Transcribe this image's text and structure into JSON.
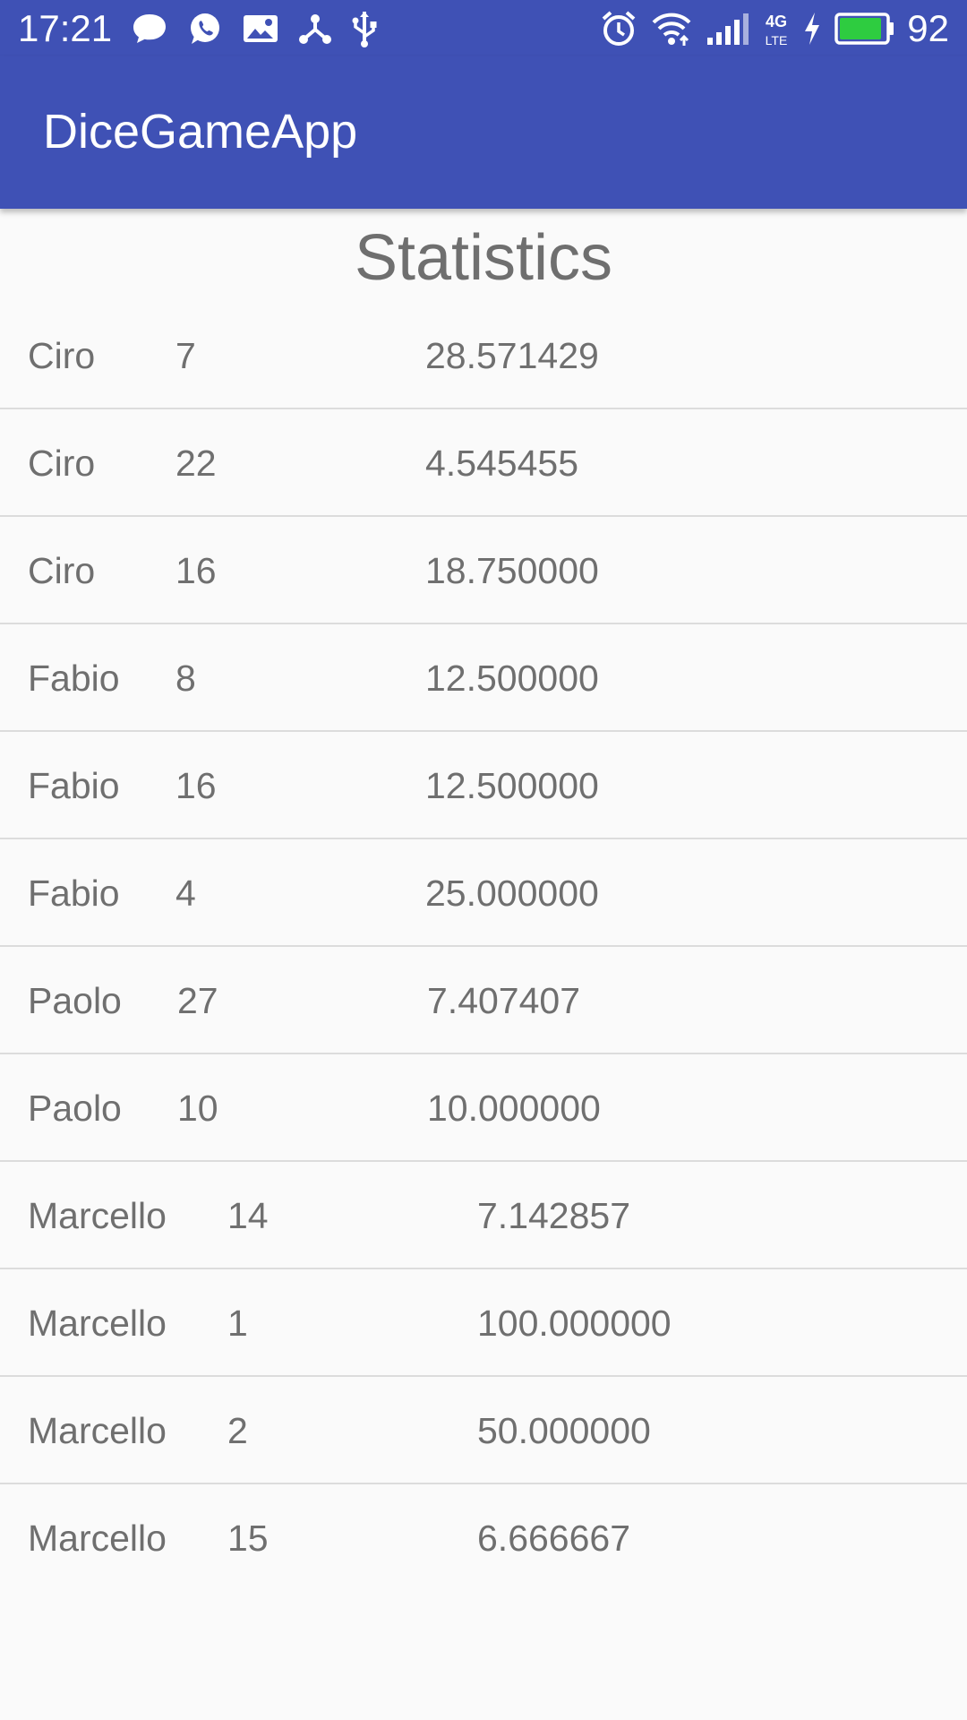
{
  "status_bar": {
    "time": "17:21",
    "left_icons": [
      "chat-bubble-icon",
      "whatsapp-icon",
      "image-message-icon",
      "share-nodes-icon",
      "usb-icon"
    ],
    "right_icons": [
      "alarm-icon",
      "wifi-icon",
      "signal-icon",
      "4g-lte-icon",
      "charging-icon",
      "battery-icon"
    ],
    "network_label": "4G",
    "network_sublabel": "LTE",
    "battery_percent": "92",
    "battery_level": 0.92
  },
  "app_bar": {
    "title": "DiceGameApp"
  },
  "page": {
    "heading": "Statistics"
  },
  "colors": {
    "primary": "#3f51b5",
    "background": "#fafafa",
    "text": "#6f6f6f",
    "divider": "#dcdcdc",
    "battery_fill": "#2ecc40"
  },
  "rows": [
    {
      "name": "Ciro",
      "score": "7",
      "percent": "28.571429"
    },
    {
      "name": "Ciro",
      "score": "22",
      "percent": "4.545455"
    },
    {
      "name": "Ciro",
      "score": "16",
      "percent": "18.750000"
    },
    {
      "name": "Fabio",
      "score": "8",
      "percent": "12.500000"
    },
    {
      "name": "Fabio",
      "score": "16",
      "percent": "12.500000"
    },
    {
      "name": "Fabio",
      "score": "4",
      "percent": "25.000000"
    },
    {
      "name": "Paolo",
      "score": "27",
      "percent": "7.407407"
    },
    {
      "name": "Paolo",
      "score": "10",
      "percent": "10.000000"
    },
    {
      "name": "Marcello",
      "score": "14",
      "percent": "7.142857"
    },
    {
      "name": "Marcello",
      "score": "1",
      "percent": "100.000000"
    },
    {
      "name": "Marcello",
      "score": "2",
      "percent": "50.000000"
    },
    {
      "name": "Marcello",
      "score": "15",
      "percent": "6.666667"
    }
  ]
}
